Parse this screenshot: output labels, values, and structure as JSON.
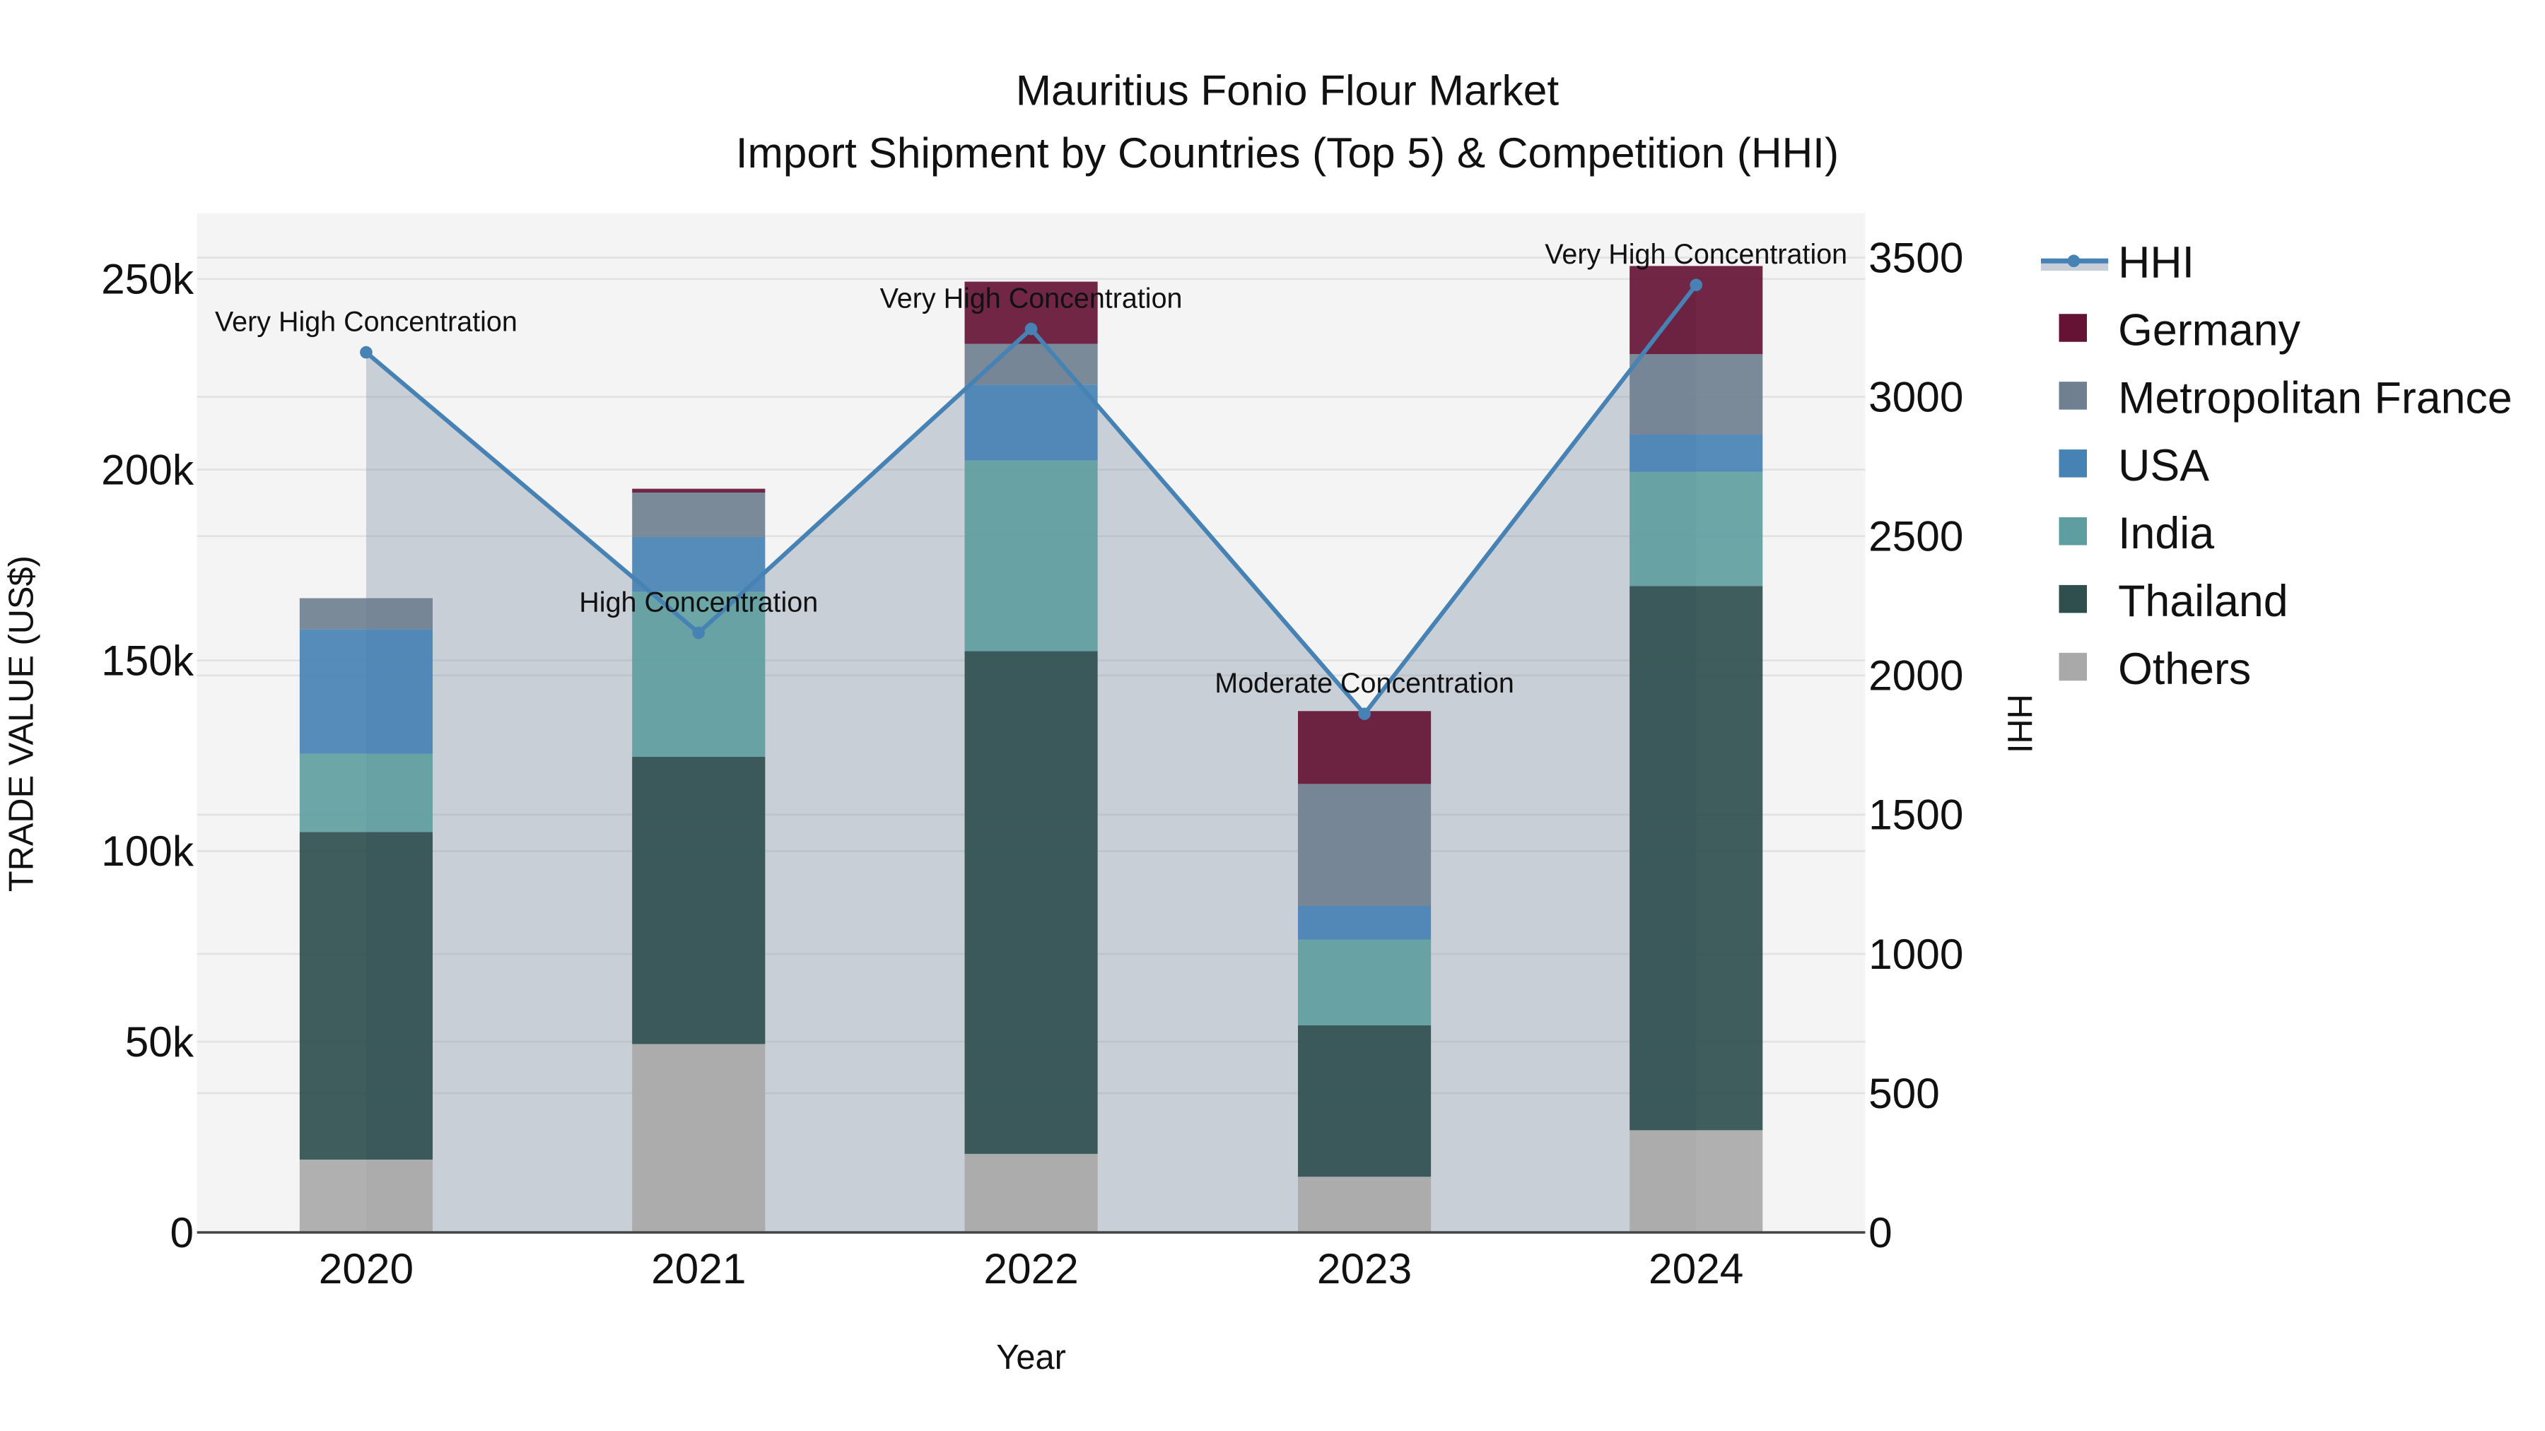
{
  "title": {
    "line1": "Mauritius Fonio Flour Market",
    "line2": "Import Shipment by Countries (Top 5) & Competition (HHI)"
  },
  "axes": {
    "x_title": "Year",
    "y_left_title": "TRADE VALUE (US$)",
    "y_right_title": "HHI",
    "y_left_ticks": [
      "0",
      "50k",
      "100k",
      "150k",
      "200k",
      "250k"
    ],
    "y_right_ticks": [
      "0",
      "500",
      "1000",
      "1500",
      "2000",
      "2500",
      "3000",
      "3500"
    ]
  },
  "legend": [
    {
      "label": "HHI",
      "type": "line",
      "color": "#4682B4"
    },
    {
      "label": "Germany",
      "type": "box",
      "color": "#641334"
    },
    {
      "label": "Metropolitan France",
      "type": "box",
      "color": "#708090"
    },
    {
      "label": "USA",
      "type": "box",
      "color": "#4682B4"
    },
    {
      "label": "India",
      "type": "box",
      "color": "#5F9EA0"
    },
    {
      "label": "Thailand",
      "type": "box",
      "color": "#2F4F4F"
    },
    {
      "label": "Others",
      "type": "box",
      "color": "#A9A9A9"
    }
  ],
  "chart_data": {
    "type": "bar",
    "stacked": true,
    "title": "Mauritius Fonio Flour Market — Import Shipment by Countries (Top 5) & Competition (HHI)",
    "xlabel": "Year",
    "ylabel": "TRADE VALUE (US$)",
    "y2label": "HHI",
    "categories": [
      "2020",
      "2021",
      "2022",
      "2023",
      "2024"
    ],
    "ylim": [
      0,
      265000
    ],
    "y2lim": [
      0,
      3600
    ],
    "grid": true,
    "legend_position": "right",
    "series": [
      {
        "name": "Others",
        "color": "#A9A9A9",
        "values": [
          19100,
          49400,
          20600,
          14600,
          26800
        ]
      },
      {
        "name": "Thailand",
        "color": "#2F4F4F",
        "values": [
          85900,
          75300,
          131800,
          39700,
          142700
        ]
      },
      {
        "name": "India",
        "color": "#5F9EA0",
        "values": [
          20500,
          43300,
          50000,
          22500,
          29900
        ]
      },
      {
        "name": "USA",
        "color": "#4682B4",
        "values": [
          32700,
          14400,
          19900,
          8800,
          9800
        ]
      },
      {
        "name": "Metropolitan France",
        "color": "#708090",
        "values": [
          8100,
          11600,
          10700,
          32000,
          21100
        ]
      },
      {
        "name": "Germany",
        "color": "#641334",
        "values": [
          0,
          1000,
          16300,
          19100,
          23100
        ]
      }
    ],
    "hhi": {
      "name": "HHI",
      "axis": "right",
      "type": "line+area",
      "color": "#4682B4",
      "values": [
        3160,
        2153,
        3244,
        1862,
        3402
      ],
      "annotations": [
        "Very High Concentration",
        "High Concentration",
        "Very High Concentration",
        "Moderate Concentration",
        "Very High Concentration"
      ]
    }
  }
}
